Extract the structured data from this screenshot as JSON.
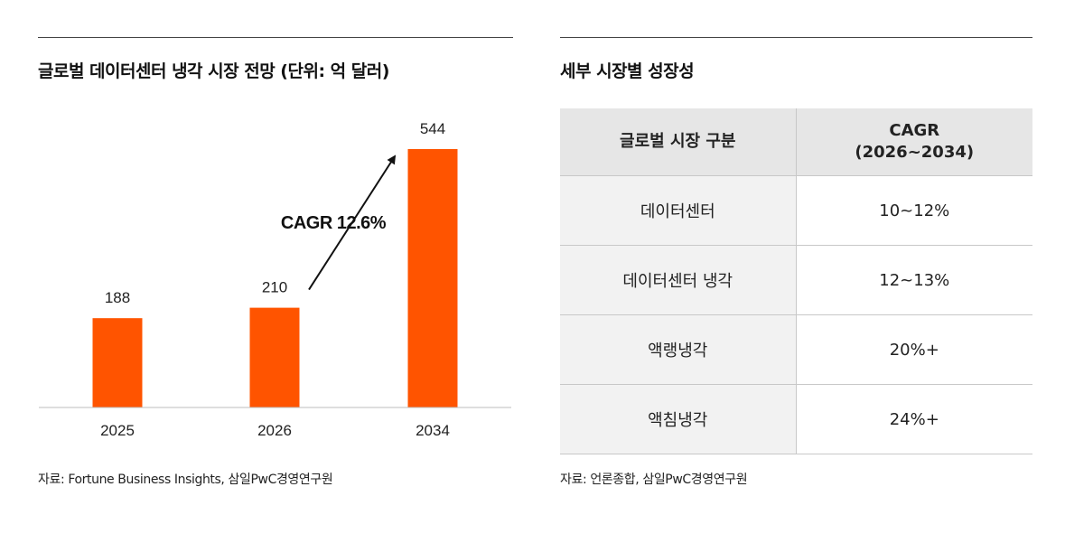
{
  "left_panel": {
    "title": "글로벌 데이터센터 냉각 시장 전망 (단위: 억 달러)",
    "source": "자료: Fortune Business Insights, 삼일PwC경영연구원"
  },
  "right_panel": {
    "title": "세부 시장별 성장성",
    "source": "자료: 언론종합, 삼일PwC경영연구원",
    "table": {
      "headers": [
        "글로벌 시장 구분",
        "CAGR",
        "(2026~2034)"
      ],
      "rows": [
        [
          "데이터센터",
          "10~12%"
        ],
        [
          "데이터센터 냉각",
          "12~13%"
        ],
        [
          "액랭냉각",
          "20%+"
        ],
        [
          "액침냉각",
          "24%+"
        ]
      ]
    }
  },
  "colors": {
    "bar": "#ff5400",
    "rule": "#444444",
    "table_header_bg": "#e6e6e6",
    "table_category_bg": "#f2f2f2"
  },
  "chart_data": [
    {
      "type": "bar",
      "title": "글로벌 데이터센터 냉각 시장 전망 (단위: 억 달러)",
      "categories": [
        "2025",
        "2026",
        "2034"
      ],
      "values": [
        188,
        210,
        544
      ],
      "data_labels": [
        "188",
        "210",
        "544"
      ],
      "ylim": [
        0,
        544
      ],
      "grid": false,
      "annotation": {
        "text": "CAGR 12.6%",
        "from_category": "2026",
        "to_category": "2034",
        "arrow": true
      }
    },
    {
      "type": "table",
      "title": "세부 시장별 성장성",
      "columns": [
        "글로벌 시장 구분",
        "CAGR (2026~2034)"
      ],
      "rows": [
        [
          "데이터센터",
          "10~12%"
        ],
        [
          "데이터센터 냉각",
          "12~13%"
        ],
        [
          "액랭냉각",
          "20%+"
        ],
        [
          "액침냉각",
          "24%+"
        ]
      ]
    }
  ]
}
